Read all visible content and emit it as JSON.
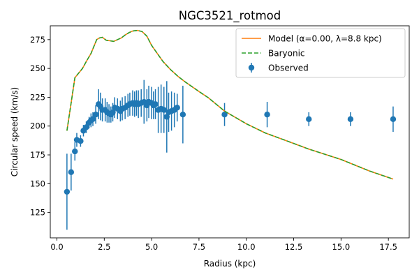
{
  "chart_data": {
    "type": "line",
    "title": "NGC3521_rotmod",
    "xlabel": "Radius (kpc)",
    "ylabel": "Circular speed (km/s)",
    "xlim": [
      -0.35,
      18.6
    ],
    "ylim": [
      103,
      287
    ],
    "xticks": [
      0.0,
      2.5,
      5.0,
      7.5,
      10.0,
      12.5,
      15.0,
      17.5
    ],
    "xtick_labels": [
      "0.0",
      "2.5",
      "5.0",
      "7.5",
      "10.0",
      "12.5",
      "15.0",
      "17.5"
    ],
    "yticks": [
      125,
      150,
      175,
      200,
      225,
      250,
      275
    ],
    "ytick_labels": [
      "125",
      "150",
      "175",
      "200",
      "225",
      "250",
      "275"
    ],
    "grid": false,
    "legend_position": "top-right",
    "legend": [
      {
        "label": "Model (α=0.00, λ=8.8 kpc)",
        "style": "solid",
        "color": "#ff7f0e"
      },
      {
        "label": "Baryonic",
        "style": "dashed",
        "color": "#2ca02c"
      },
      {
        "label": "Observed",
        "style": "errorbar",
        "color": "#1f77b4"
      }
    ],
    "model_curve": {
      "name": "Model (α=0.00, λ=8.8 kpc)",
      "color": "#ff7f0e",
      "x": [
        0.53,
        0.75,
        0.95,
        1.2,
        1.35,
        1.55,
        1.8,
        2.0,
        2.1,
        2.25,
        2.4,
        2.6,
        2.8,
        3.0,
        3.2,
        3.4,
        3.6,
        3.8,
        4.0,
        4.25,
        4.5,
        4.75,
        5.0,
        5.3,
        5.6,
        6.0,
        6.4,
        6.8,
        7.5,
        8.0,
        8.85,
        10.0,
        11.0,
        12.0,
        13.3,
        15.0,
        16.5,
        17.75
      ],
      "y": [
        196,
        220,
        242,
        247,
        250,
        256,
        263,
        271,
        275,
        276.5,
        277,
        274.5,
        274,
        273.5,
        275,
        276.5,
        279,
        281,
        282.5,
        283,
        282,
        278,
        270,
        263,
        256,
        249,
        243,
        238,
        230,
        224.5,
        213,
        202,
        194,
        188,
        180,
        171,
        161,
        154
      ]
    },
    "baryonic_curve": {
      "name": "Baryonic",
      "color": "#2ca02c",
      "x": [
        0.53,
        0.75,
        0.95,
        1.2,
        1.35,
        1.55,
        1.8,
        2.0,
        2.1,
        2.25,
        2.4,
        2.6,
        2.8,
        3.0,
        3.2,
        3.4,
        3.6,
        3.8,
        4.0,
        4.25,
        4.5,
        4.75,
        5.0,
        5.3,
        5.6,
        6.0,
        6.4,
        6.8,
        7.5,
        8.0,
        8.85,
        10.0,
        11.0,
        12.0,
        13.3,
        15.0,
        16.5,
        17.75
      ],
      "y": [
        196,
        220,
        242,
        247,
        250,
        256,
        263,
        271,
        275,
        276.5,
        277,
        274.5,
        274,
        273.5,
        275,
        276.5,
        279,
        281,
        282.5,
        283,
        282,
        278,
        270,
        263,
        256,
        249,
        243,
        238,
        230,
        224.5,
        213,
        202,
        194,
        188,
        180,
        171,
        161,
        154
      ]
    },
    "observed": {
      "name": "Observed",
      "color": "#1f77b4",
      "x": [
        0.53,
        0.75,
        0.95,
        1.05,
        1.25,
        1.4,
        1.55,
        1.7,
        1.8,
        1.9,
        2.05,
        2.2,
        2.3,
        2.4,
        2.55,
        2.65,
        2.75,
        2.85,
        2.95,
        3.05,
        3.2,
        3.35,
        3.45,
        3.6,
        3.75,
        3.85,
        4.0,
        4.1,
        4.2,
        4.3,
        4.45,
        4.6,
        4.75,
        4.85,
        5.0,
        5.1,
        5.2,
        5.35,
        5.5,
        5.65,
        5.8,
        5.9,
        6.05,
        6.2,
        6.35,
        6.65,
        8.85,
        11.1,
        13.3,
        15.5,
        17.75
      ],
      "y": [
        143,
        160,
        178,
        188,
        187,
        196,
        199,
        203,
        205,
        206,
        210,
        219,
        217,
        214,
        214,
        212,
        211,
        210,
        212,
        216,
        215,
        213,
        215,
        216,
        218,
        219,
        220,
        219,
        220,
        219,
        220,
        221,
        218,
        221,
        220,
        218,
        219,
        214,
        215,
        214,
        208,
        212,
        213,
        214,
        216,
        210,
        210,
        210,
        206,
        206,
        206
      ],
      "err": [
        33,
        16,
        8,
        6,
        5,
        5,
        5,
        5,
        6,
        6,
        8,
        13,
        12,
        10,
        10,
        9,
        8,
        7,
        8,
        9,
        9,
        9,
        10,
        10,
        10,
        10,
        11,
        11,
        11,
        12,
        12,
        19,
        14,
        14,
        14,
        12,
        13,
        20,
        21,
        20,
        31,
        17,
        17,
        15,
        12,
        25,
        10,
        11,
        6,
        6,
        11
      ]
    }
  }
}
